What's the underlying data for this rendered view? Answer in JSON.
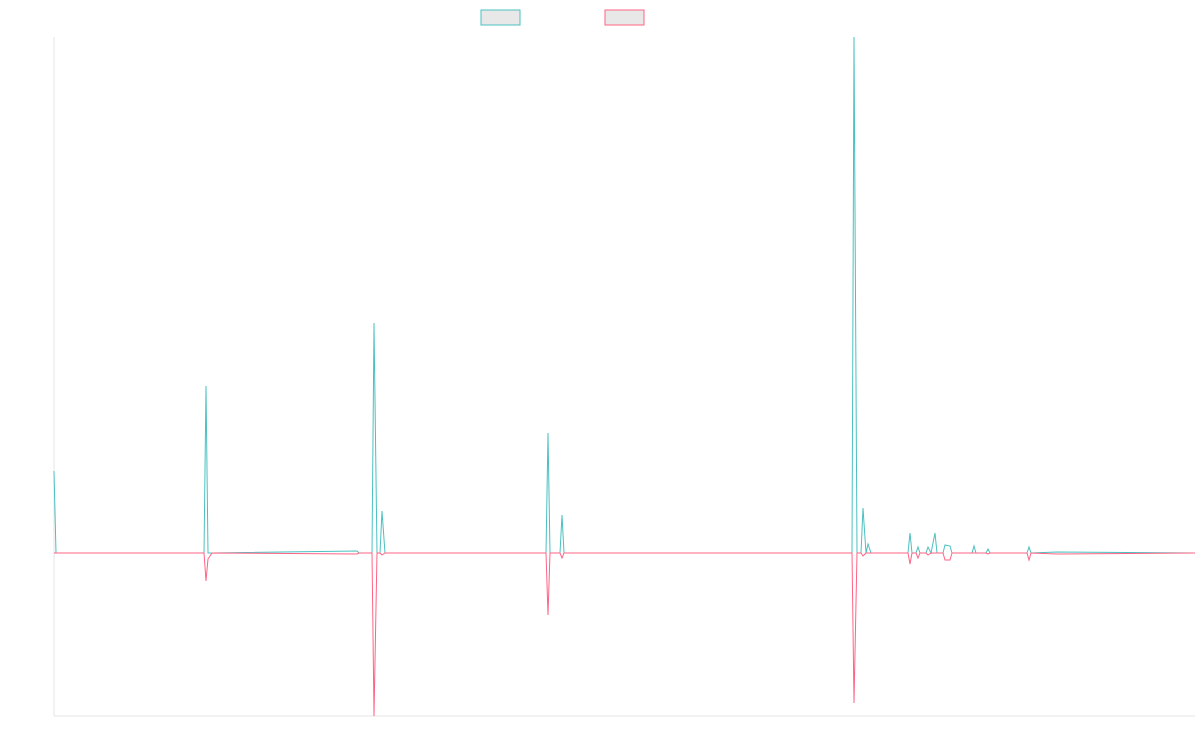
{
  "chart_data": {
    "type": "line",
    "x": [
      0,
      2,
      150,
      152,
      154,
      158,
      303,
      305,
      318,
      320,
      323,
      326,
      328,
      331,
      492,
      494,
      496,
      506,
      508,
      510,
      798,
      800,
      803,
      807,
      809,
      812,
      814,
      817,
      854,
      856,
      858,
      862,
      864,
      866,
      872,
      874,
      877,
      881,
      883,
      889,
      891,
      896,
      898,
      918,
      920,
      922,
      932,
      934,
      936,
      973,
      975,
      977,
      1003,
      1141
    ],
    "series": [
      {
        "color": "#4bc0c0",
        "values": [
          82,
          0,
          0,
          167,
          0,
          0,
          2,
          0,
          0,
          230,
          0,
          0,
          42,
          0,
          0,
          120,
          0,
          0,
          38,
          0,
          0,
          516,
          0,
          0,
          45,
          0,
          9,
          0,
          0,
          20,
          0,
          0,
          6,
          0,
          0,
          6,
          0,
          20,
          0,
          0,
          8,
          7,
          0,
          0,
          7,
          0,
          0,
          4,
          0,
          0,
          6,
          0,
          1,
          0
        ]
      },
      {
        "color": "#ff6384",
        "values": [
          0,
          0,
          0,
          -28,
          -6,
          0,
          -1,
          0,
          0,
          -163,
          0,
          0,
          -2,
          0,
          0,
          -62,
          0,
          0,
          -5,
          0,
          0,
          -150,
          0,
          0,
          -3,
          0,
          0,
          0,
          0,
          -11,
          0,
          0,
          -5,
          0,
          0,
          -2,
          0,
          0,
          0,
          0,
          -7,
          -7,
          0,
          0,
          0,
          0,
          0,
          -1,
          0,
          0,
          -7,
          0,
          -1,
          0
        ]
      }
    ],
    "xlim": [
      0,
      1141
    ],
    "ylim": [
      -163,
      516
    ]
  }
}
